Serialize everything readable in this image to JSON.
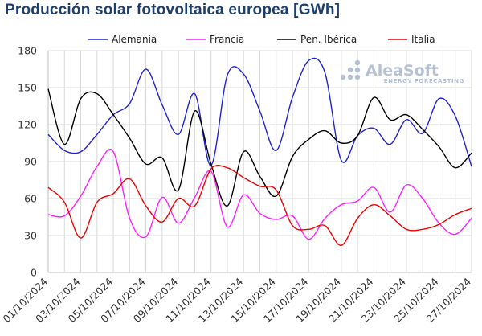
{
  "chart_data": {
    "type": "line",
    "title": "Producción solar fotovoltaica europea [GWh]",
    "xlabel": "",
    "ylabel": "",
    "ylim": [
      0,
      180
    ],
    "yticks": [
      0,
      30,
      60,
      90,
      120,
      150,
      180
    ],
    "grid": true,
    "legend_position": "top",
    "x": [
      "01/10/2024",
      "02/10/2024",
      "03/10/2024",
      "04/10/2024",
      "05/10/2024",
      "06/10/2024",
      "07/10/2024",
      "08/10/2024",
      "09/10/2024",
      "10/10/2024",
      "11/10/2024",
      "12/10/2024",
      "13/10/2024",
      "14/10/2024",
      "15/10/2024",
      "16/10/2024",
      "17/10/2024",
      "18/10/2024",
      "19/10/2024",
      "20/10/2024",
      "21/10/2024",
      "22/10/2024",
      "23/10/2024",
      "24/10/2024",
      "25/10/2024",
      "26/10/2024",
      "27/10/2024"
    ],
    "xtick_labels": [
      "01/10/2024",
      "03/10/2024",
      "05/10/2024",
      "07/10/2024",
      "09/10/2024",
      "11/10/2024",
      "13/10/2024",
      "15/10/2024",
      "17/10/2024",
      "19/10/2024",
      "21/10/2024",
      "23/10/2024",
      "25/10/2024",
      "27/10/2024"
    ],
    "series": [
      {
        "name": "Alemania",
        "color": "#2323d6",
        "values": [
          112,
          99,
          98,
          112,
          128,
          137,
          165,
          136,
          112,
          145,
          87,
          160,
          161,
          131,
          99,
          142,
          172,
          162,
          91,
          111,
          117,
          104,
          124,
          113,
          141,
          127,
          86
        ]
      },
      {
        "name": "Francia",
        "color": "#ff1fff",
        "values": [
          47,
          46,
          62,
          86,
          98,
          44,
          29,
          61,
          40,
          61,
          82,
          37,
          63,
          48,
          43,
          46,
          27,
          44,
          55,
          58,
          69,
          49,
          71,
          60,
          40,
          31,
          44
        ]
      },
      {
        "name": "Pen. Ibérica",
        "color": "#000000",
        "values": [
          149,
          104,
          141,
          145,
          128,
          109,
          88,
          93,
          67,
          131,
          88,
          54,
          98,
          78,
          62,
          94,
          108,
          115,
          105,
          111,
          142,
          124,
          128,
          116,
          102,
          85,
          97
        ]
      },
      {
        "name": "Italia",
        "color": "#ee0000",
        "values": [
          69,
          57,
          28,
          57,
          64,
          76,
          54,
          41,
          60,
          54,
          84,
          85,
          77,
          70,
          67,
          38,
          35,
          38,
          22,
          44,
          55,
          46,
          35,
          35,
          39,
          47,
          52
        ]
      }
    ]
  },
  "watermark": {
    "brand": "AleaSoft",
    "sub": "ENERGY FORECASTING"
  }
}
